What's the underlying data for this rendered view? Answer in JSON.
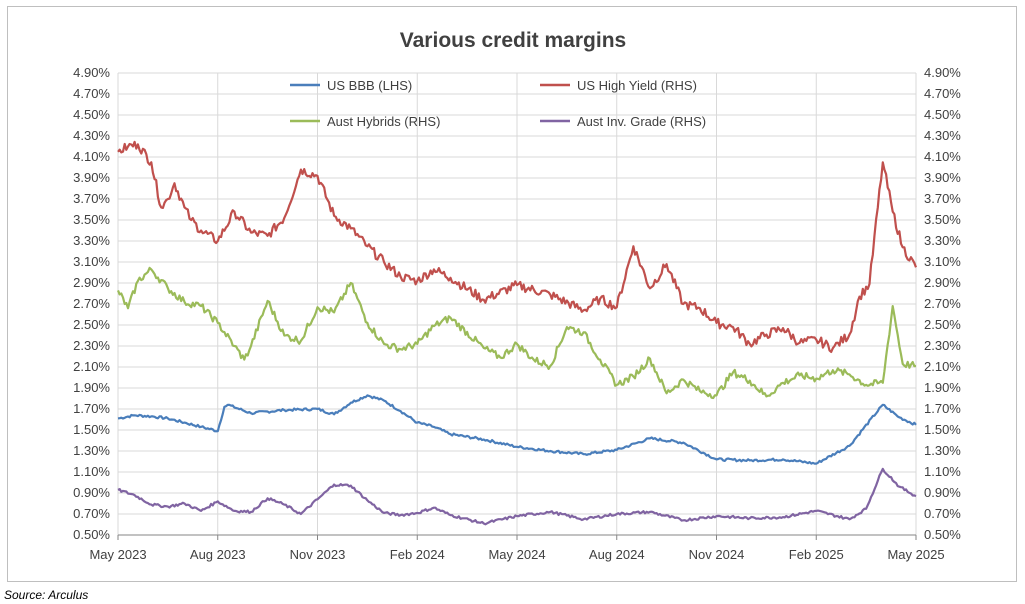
{
  "source": "Source: Arculus",
  "chart_data": {
    "type": "line",
    "title": "Various credit margins",
    "x_ticks": [
      "May 2023",
      "Aug 2023",
      "Nov 2023",
      "Feb 2024",
      "May 2024",
      "Aug 2024",
      "Nov 2024",
      "Feb 2025",
      "May 2025"
    ],
    "y_ticks_left": [
      "0.50%",
      "0.70%",
      "0.90%",
      "1.10%",
      "1.30%",
      "1.50%",
      "1.70%",
      "1.90%",
      "2.10%",
      "2.30%",
      "2.50%",
      "2.70%",
      "2.90%",
      "3.10%",
      "3.30%",
      "3.50%",
      "3.70%",
      "3.90%",
      "4.10%",
      "4.30%",
      "4.50%",
      "4.70%",
      "4.90%"
    ],
    "y_ticks_right": [
      "0.50%",
      "0.70%",
      "0.90%",
      "1.10%",
      "1.30%",
      "1.50%",
      "1.70%",
      "1.90%",
      "2.10%",
      "2.30%",
      "2.50%",
      "2.70%",
      "2.90%",
      "3.10%",
      "3.30%",
      "3.50%",
      "3.70%",
      "3.90%",
      "4.10%",
      "4.30%",
      "4.50%",
      "4.70%",
      "4.90%"
    ],
    "ylim": [
      0.5,
      4.9
    ],
    "x_range_months": [
      0,
      24
    ],
    "grid": true,
    "legend_position": "top",
    "series": [
      {
        "name": "US BBB (LHS)",
        "color": "#4a7ebb",
        "x_months": [
          0,
          0.5,
          1,
          1.5,
          2,
          2.5,
          3,
          3.2,
          3.3,
          4,
          5,
          6,
          6.5,
          7,
          7.5,
          8,
          8.5,
          9,
          9.5,
          10,
          11,
          12,
          13,
          14,
          15,
          16,
          17,
          18,
          19,
          20,
          21,
          22,
          23,
          23.5,
          24
        ],
        "values": [
          1.61,
          1.64,
          1.63,
          1.61,
          1.57,
          1.53,
          1.49,
          1.72,
          1.74,
          1.66,
          1.69,
          1.7,
          1.65,
          1.76,
          1.83,
          1.78,
          1.68,
          1.57,
          1.53,
          1.46,
          1.41,
          1.34,
          1.3,
          1.27,
          1.31,
          1.42,
          1.38,
          1.22,
          1.21,
          1.22,
          1.18,
          1.35,
          1.74,
          1.62,
          1.55
        ]
      },
      {
        "name": "US High Yield (RHS)",
        "color": "#c0504d",
        "x_months": [
          0,
          0.3,
          0.6,
          1,
          1.3,
          1.5,
          1.7,
          2,
          2.2,
          2.5,
          3,
          3.5,
          4,
          4.5,
          5,
          5.5,
          6,
          6.5,
          7,
          7.5,
          8,
          8.5,
          9,
          9.5,
          10,
          11,
          12,
          13,
          14,
          14.5,
          15,
          15.5,
          16,
          16.5,
          17,
          17.5,
          18,
          18.5,
          19,
          19.5,
          20,
          20.5,
          21,
          21.5,
          22,
          22.3,
          22.6,
          23,
          23.3,
          23.6,
          24
        ],
        "values": [
          4.15,
          4.2,
          4.22,
          4.05,
          3.62,
          3.7,
          3.85,
          3.62,
          3.5,
          3.4,
          3.3,
          3.58,
          3.38,
          3.35,
          3.52,
          3.98,
          3.92,
          3.54,
          3.42,
          3.25,
          3.1,
          2.96,
          2.92,
          3.03,
          2.95,
          2.74,
          2.88,
          2.79,
          2.64,
          2.75,
          2.67,
          3.25,
          2.85,
          3.08,
          2.7,
          2.66,
          2.52,
          2.48,
          2.32,
          2.41,
          2.47,
          2.33,
          2.36,
          2.28,
          2.41,
          2.77,
          2.89,
          4.05,
          3.58,
          3.24,
          3.05
        ]
      },
      {
        "name": "Aust Hybrids (RHS)",
        "color": "#9bbb59",
        "x_months": [
          0,
          0.3,
          0.6,
          1,
          1.5,
          2,
          2.5,
          3,
          3.5,
          3.8,
          4,
          4.5,
          5,
          5.5,
          6,
          6.5,
          7,
          7.5,
          8,
          8.5,
          9,
          9.5,
          10,
          11,
          11.5,
          12,
          12.5,
          13,
          13.5,
          14,
          14.5,
          15,
          15.5,
          16,
          16.5,
          17,
          17.5,
          18,
          18.5,
          19,
          19.5,
          20,
          20.5,
          21,
          21.5,
          22,
          22.5,
          23,
          23.3,
          23.6,
          24
        ],
        "values": [
          2.83,
          2.66,
          2.92,
          3.03,
          2.85,
          2.72,
          2.68,
          2.52,
          2.3,
          2.17,
          2.3,
          2.73,
          2.4,
          2.35,
          2.67,
          2.62,
          2.9,
          2.52,
          2.32,
          2.27,
          2.32,
          2.49,
          2.57,
          2.28,
          2.19,
          2.32,
          2.17,
          2.11,
          2.48,
          2.43,
          2.17,
          1.93,
          2.01,
          2.18,
          1.85,
          1.98,
          1.87,
          1.83,
          2.05,
          1.97,
          1.82,
          1.95,
          2.02,
          1.99,
          2.07,
          2.03,
          1.93,
          1.95,
          2.68,
          2.13,
          2.11
        ]
      },
      {
        "name": "Aust Inv. Grade (RHS)",
        "color": "#8064a2",
        "x_months": [
          0,
          0.5,
          1,
          1.5,
          2,
          2.5,
          3,
          3.5,
          4,
          4.5,
          5,
          5.5,
          6,
          6.5,
          7,
          7.5,
          8,
          8.5,
          9,
          9.5,
          10,
          11,
          12,
          13,
          14,
          15,
          16,
          17,
          18,
          19,
          20,
          21,
          22,
          22.5,
          23,
          23.5,
          24
        ],
        "values": [
          0.93,
          0.88,
          0.79,
          0.77,
          0.8,
          0.73,
          0.82,
          0.73,
          0.72,
          0.85,
          0.79,
          0.7,
          0.84,
          0.98,
          0.97,
          0.83,
          0.71,
          0.69,
          0.71,
          0.76,
          0.69,
          0.61,
          0.68,
          0.72,
          0.65,
          0.7,
          0.72,
          0.64,
          0.68,
          0.66,
          0.67,
          0.73,
          0.65,
          0.75,
          1.13,
          0.96,
          0.87
        ]
      }
    ]
  }
}
